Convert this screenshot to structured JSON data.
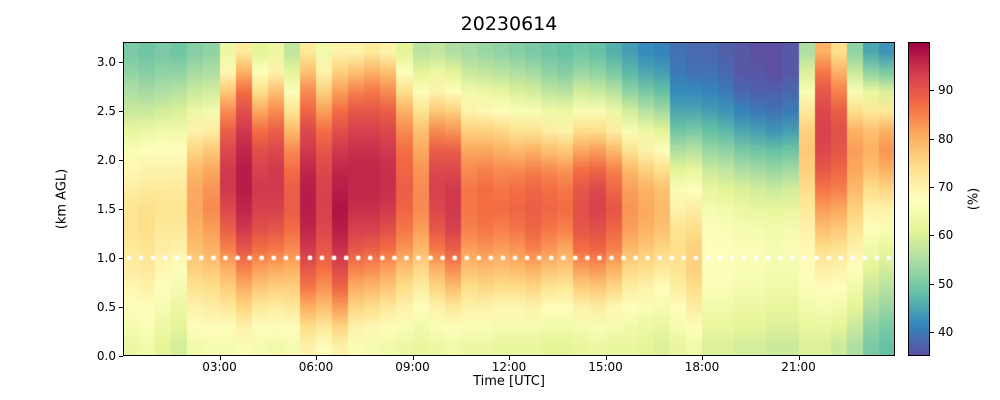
{
  "chart_data": {
    "type": "heatmap",
    "title": "20230614",
    "xlabel": "Time [UTC]",
    "ylabel": "(km AGL)",
    "colorbar_label": "(%)",
    "colormap": "Spectral_r",
    "colormap_stops": [
      "#5e4fa2",
      "#3288bd",
      "#66c2a5",
      "#abdda4",
      "#e6f598",
      "#ffffbf",
      "#fee08b",
      "#fdae61",
      "#f46d43",
      "#d53e4f",
      "#9e0142"
    ],
    "value_range": [
      35,
      100
    ],
    "x_range_hours": [
      0,
      24
    ],
    "y_range_km": [
      0,
      3.2
    ],
    "x_tick_labels": [
      "03:00",
      "06:00",
      "09:00",
      "12:00",
      "15:00",
      "18:00",
      "21:00"
    ],
    "x_tick_hours": [
      3,
      6,
      9,
      12,
      15,
      18,
      21
    ],
    "y_tick_labels": [
      "0.0",
      "0.5",
      "1.0",
      "1.5",
      "2.0",
      "2.5",
      "3.0"
    ],
    "y_tick_values": [
      0,
      0.5,
      1,
      1.5,
      2,
      2.5,
      3
    ],
    "colorbar_tick_labels": [
      "40",
      "50",
      "60",
      "70",
      "80",
      "90"
    ],
    "colorbar_tick_values": [
      40,
      50,
      60,
      70,
      80,
      90
    ],
    "x_hours": [
      0,
      0.5,
      1,
      1.5,
      2,
      2.5,
      3,
      3.5,
      4,
      4.5,
      5,
      5.5,
      6,
      6.5,
      7,
      7.5,
      8,
      8.5,
      9,
      9.5,
      10,
      10.5,
      11,
      11.5,
      12,
      12.5,
      13,
      13.5,
      14,
      14.5,
      15,
      15.5,
      16,
      16.5,
      17,
      17.5,
      18,
      18.5,
      19,
      19.5,
      20,
      20.5,
      21,
      21.5,
      22,
      22.5,
      23,
      23.5
    ],
    "altitudes_km": [
      0.0,
      0.2,
      0.4,
      0.6,
      0.8,
      1.0,
      1.2,
      1.4,
      1.6,
      1.8,
      2.0,
      2.2,
      2.4,
      2.6,
      2.8,
      3.0
    ],
    "values_orientation": "values[time_index][altitude_index]; altitude_index 0 = surface",
    "values": [
      [
        63,
        65,
        67,
        69,
        71,
        72,
        73,
        73,
        71,
        69,
        66,
        62,
        58,
        55,
        52,
        50
      ],
      [
        64,
        66,
        68,
        70,
        72,
        73,
        74,
        74,
        72,
        70,
        67,
        63,
        58,
        54,
        51,
        49
      ],
      [
        61,
        63,
        65,
        67,
        69,
        71,
        72,
        73,
        72,
        70,
        67,
        64,
        59,
        55,
        52,
        50
      ],
      [
        59,
        61,
        63,
        65,
        67,
        70,
        72,
        73,
        72,
        70,
        68,
        64,
        60,
        56,
        52,
        49
      ],
      [
        64,
        67,
        70,
        73,
        76,
        78,
        80,
        81,
        81,
        79,
        75,
        70,
        63,
        58,
        54,
        51
      ],
      [
        65,
        68,
        71,
        74,
        77,
        80,
        82,
        84,
        83,
        81,
        77,
        71,
        65,
        59,
        55,
        52
      ],
      [
        65,
        68,
        72,
        76,
        80,
        85,
        89,
        92,
        94,
        94,
        92,
        89,
        84,
        77,
        69,
        63
      ],
      [
        66,
        70,
        75,
        80,
        85,
        90,
        94,
        96,
        97,
        97,
        96,
        94,
        91,
        87,
        80,
        72
      ],
      [
        65,
        68,
        72,
        77,
        82,
        87,
        91,
        93,
        94,
        93,
        91,
        87,
        81,
        74,
        67,
        61
      ],
      [
        64,
        67,
        71,
        76,
        81,
        86,
        90,
        93,
        94,
        94,
        92,
        89,
        84,
        78,
        70,
        63
      ],
      [
        65,
        68,
        72,
        76,
        80,
        84,
        87,
        89,
        89,
        87,
        84,
        79,
        73,
        67,
        61,
        57
      ],
      [
        70,
        74,
        80,
        86,
        90,
        94,
        96,
        97,
        97,
        96,
        94,
        92,
        88,
        84,
        78,
        72
      ],
      [
        68,
        72,
        78,
        83,
        87,
        90,
        92,
        93,
        93,
        92,
        90,
        87,
        82,
        76,
        70,
        64
      ],
      [
        70,
        75,
        82,
        88,
        92,
        95,
        97,
        98,
        97,
        96,
        94,
        91,
        87,
        82,
        76,
        70
      ],
      [
        66,
        70,
        75,
        80,
        85,
        90,
        93,
        95,
        96,
        96,
        95,
        93,
        90,
        85,
        78,
        70
      ],
      [
        65,
        69,
        74,
        79,
        84,
        89,
        93,
        95,
        96,
        96,
        95,
        93,
        90,
        86,
        80,
        72
      ],
      [
        64,
        68,
        72,
        77,
        82,
        87,
        91,
        94,
        95,
        95,
        94,
        92,
        89,
        84,
        78,
        70
      ],
      [
        63,
        66,
        70,
        74,
        78,
        83,
        86,
        88,
        89,
        88,
        87,
        84,
        80,
        74,
        67,
        61
      ],
      [
        62,
        64,
        67,
        71,
        75,
        79,
        82,
        84,
        84,
        83,
        81,
        78,
        73,
        67,
        61,
        56
      ],
      [
        63,
        66,
        70,
        75,
        80,
        86,
        90,
        92,
        93,
        92,
        89,
        84,
        77,
        70,
        63,
        57
      ],
      [
        64,
        67,
        72,
        78,
        84,
        89,
        93,
        94,
        94,
        92,
        89,
        83,
        76,
        68,
        61,
        55
      ],
      [
        63,
        66,
        70,
        74,
        78,
        82,
        85,
        86,
        86,
        84,
        81,
        76,
        70,
        64,
        58,
        54
      ],
      [
        63,
        66,
        70,
        75,
        79,
        83,
        86,
        87,
        87,
        85,
        81,
        76,
        69,
        63,
        57,
        53
      ],
      [
        62,
        65,
        69,
        74,
        78,
        82,
        85,
        87,
        86,
        84,
        80,
        75,
        68,
        62,
        56,
        52
      ],
      [
        62,
        65,
        69,
        74,
        79,
        83,
        86,
        88,
        87,
        84,
        79,
        73,
        66,
        60,
        55,
        51
      ],
      [
        62,
        65,
        70,
        75,
        80,
        85,
        88,
        89,
        88,
        85,
        80,
        73,
        66,
        59,
        54,
        50
      ],
      [
        61,
        64,
        68,
        73,
        78,
        83,
        86,
        88,
        87,
        84,
        78,
        71,
        64,
        57,
        52,
        49
      ],
      [
        61,
        64,
        68,
        72,
        77,
        81,
        85,
        87,
        86,
        83,
        77,
        70,
        63,
        56,
        51,
        48
      ],
      [
        62,
        65,
        70,
        76,
        82,
        87,
        90,
        91,
        90,
        87,
        81,
        74,
        66,
        59,
        53,
        49
      ],
      [
        63,
        66,
        71,
        77,
        83,
        88,
        91,
        93,
        92,
        88,
        82,
        74,
        66,
        58,
        52,
        48
      ],
      [
        62,
        65,
        69,
        75,
        80,
        85,
        88,
        90,
        88,
        85,
        79,
        71,
        63,
        56,
        50,
        46
      ],
      [
        62,
        64,
        67,
        71,
        75,
        79,
        82,
        83,
        82,
        79,
        73,
        66,
        59,
        52,
        47,
        44
      ],
      [
        61,
        63,
        66,
        70,
        74,
        77,
        80,
        81,
        80,
        76,
        70,
        63,
        56,
        50,
        45,
        42
      ],
      [
        60,
        62,
        65,
        68,
        72,
        75,
        78,
        79,
        78,
        74,
        68,
        61,
        54,
        48,
        44,
        41
      ],
      [
        62,
        65,
        68,
        71,
        73,
        74,
        73,
        70,
        66,
        61,
        55,
        49,
        45,
        42,
        40,
        39
      ],
      [
        64,
        67,
        71,
        74,
        76,
        76,
        74,
        71,
        67,
        62,
        56,
        50,
        45,
        42,
        39,
        38
      ],
      [
        60,
        62,
        64,
        66,
        67,
        68,
        67,
        65,
        62,
        58,
        53,
        48,
        44,
        41,
        39,
        38
      ],
      [
        60,
        62,
        64,
        66,
        67,
        67,
        66,
        64,
        61,
        57,
        52,
        47,
        43,
        40,
        38,
        37
      ],
      [
        59,
        61,
        63,
        65,
        66,
        66,
        65,
        63,
        60,
        55,
        50,
        45,
        41,
        38,
        36,
        36
      ],
      [
        59,
        61,
        63,
        65,
        66,
        66,
        65,
        62,
        59,
        54,
        49,
        44,
        40,
        37,
        36,
        35
      ],
      [
        58,
        60,
        62,
        64,
        65,
        65,
        64,
        62,
        58,
        53,
        48,
        43,
        39,
        37,
        35,
        35
      ],
      [
        58,
        60,
        62,
        64,
        65,
        66,
        65,
        62,
        59,
        54,
        49,
        44,
        40,
        38,
        36,
        36
      ],
      [
        60,
        62,
        64,
        66,
        68,
        69,
        70,
        72,
        74,
        76,
        77,
        76,
        72,
        66,
        60,
        55
      ],
      [
        60,
        62,
        65,
        68,
        71,
        74,
        78,
        82,
        86,
        90,
        92,
        93,
        92,
        90,
        86,
        80
      ],
      [
        58,
        61,
        64,
        67,
        70,
        73,
        77,
        81,
        85,
        88,
        90,
        91,
        89,
        85,
        80,
        74
      ],
      [
        55,
        58,
        61,
        64,
        67,
        70,
        73,
        76,
        79,
        81,
        82,
        80,
        74,
        66,
        58,
        52
      ],
      [
        50,
        52,
        55,
        58,
        61,
        64,
        67,
        70,
        74,
        78,
        80,
        78,
        72,
        62,
        52,
        45
      ],
      [
        48,
        50,
        53,
        56,
        59,
        62,
        66,
        70,
        75,
        80,
        83,
        80,
        72,
        60,
        50,
        43
      ]
    ],
    "overlay_dot_line": {
      "altitude_km": 1.0,
      "color": "#ffffff",
      "style": "dotted"
    }
  }
}
